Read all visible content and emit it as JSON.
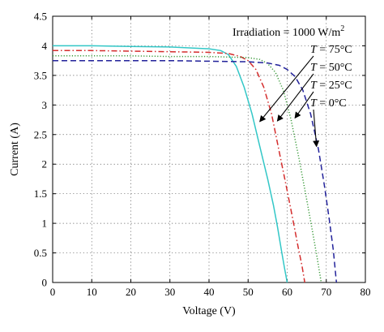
{
  "chart_data": {
    "type": "line",
    "xlabel": "Voltage (V)",
    "ylabel": "Current (A)",
    "xlim": [
      0,
      80
    ],
    "ylim": [
      0,
      4.5
    ],
    "xticks": [
      "0",
      "10",
      "20",
      "30",
      "40",
      "50",
      "60",
      "70",
      "80"
    ],
    "yticks": [
      "0",
      "0.5",
      "1",
      "1.5",
      "2",
      "2.5",
      "3",
      "3.5",
      "4",
      "4.5"
    ],
    "grid": true,
    "irradiation": {
      "prefix": "Irradiation = 1000 W/m",
      "superscript": "2"
    },
    "series": [
      {
        "label": "T = 75°C",
        "label_parts": {
          "var": "T",
          "value": " = 75°C"
        },
        "color": "#33c7c7",
        "dash": "solid",
        "arrow_tip": {
          "x": 53,
          "y": 2.72
        },
        "points": [
          [
            0,
            4.0
          ],
          [
            10,
            4.0
          ],
          [
            20,
            3.99
          ],
          [
            30,
            3.98
          ],
          [
            40,
            3.95
          ],
          [
            43,
            3.92
          ],
          [
            45,
            3.85
          ],
          [
            47,
            3.65
          ],
          [
            49,
            3.3
          ],
          [
            51,
            2.85
          ],
          [
            53,
            2.3
          ],
          [
            55,
            1.75
          ],
          [
            56.5,
            1.3
          ],
          [
            57.5,
            0.95
          ],
          [
            58.5,
            0.55
          ],
          [
            59.3,
            0.25
          ],
          [
            60,
            0
          ]
        ]
      },
      {
        "label": "T = 50°C",
        "label_parts": {
          "var": "T",
          "value": " = 50°C"
        },
        "color": "#d42d2d",
        "dash": "dashdot",
        "arrow_tip": {
          "x": 57.5,
          "y": 2.73
        },
        "points": [
          [
            0,
            3.92
          ],
          [
            10,
            3.92
          ],
          [
            20,
            3.91
          ],
          [
            30,
            3.9
          ],
          [
            40,
            3.89
          ],
          [
            45,
            3.87
          ],
          [
            48,
            3.82
          ],
          [
            50,
            3.75
          ],
          [
            52,
            3.6
          ],
          [
            54,
            3.3
          ],
          [
            56,
            2.85
          ],
          [
            58,
            2.2
          ],
          [
            60,
            1.55
          ],
          [
            61.5,
            1.05
          ],
          [
            62.8,
            0.6
          ],
          [
            63.8,
            0.28
          ],
          [
            64.5,
            0
          ]
        ]
      },
      {
        "label": "T = 25°C",
        "label_parts": {
          "var": "T",
          "value": " = 25°C"
        },
        "color": "#3a9a3a",
        "dash": "dotted",
        "arrow_tip": {
          "x": 62,
          "y": 2.78
        },
        "points": [
          [
            0,
            3.83
          ],
          [
            10,
            3.83
          ],
          [
            20,
            3.83
          ],
          [
            30,
            3.82
          ],
          [
            40,
            3.82
          ],
          [
            50,
            3.8
          ],
          [
            53,
            3.77
          ],
          [
            55,
            3.7
          ],
          [
            57,
            3.55
          ],
          [
            59,
            3.25
          ],
          [
            61,
            2.75
          ],
          [
            63,
            2.1
          ],
          [
            65,
            1.4
          ],
          [
            66.5,
            0.85
          ],
          [
            67.7,
            0.4
          ],
          [
            68.7,
            0
          ]
        ]
      },
      {
        "label": "T = 0°C",
        "label_parts": {
          "var": "T",
          "value": " = 0°C"
        },
        "color": "#22229a",
        "dash": "dashed",
        "arrow_tip": {
          "x": 67.5,
          "y": 2.3
        },
        "points": [
          [
            0,
            3.75
          ],
          [
            10,
            3.75
          ],
          [
            20,
            3.75
          ],
          [
            30,
            3.75
          ],
          [
            40,
            3.74
          ],
          [
            50,
            3.73
          ],
          [
            55,
            3.71
          ],
          [
            58,
            3.67
          ],
          [
            60,
            3.6
          ],
          [
            62,
            3.48
          ],
          [
            64,
            3.25
          ],
          [
            66,
            2.85
          ],
          [
            68,
            2.25
          ],
          [
            69.5,
            1.65
          ],
          [
            70.8,
            1.05
          ],
          [
            71.8,
            0.55
          ],
          [
            72.6,
            0
          ]
        ]
      }
    ]
  }
}
